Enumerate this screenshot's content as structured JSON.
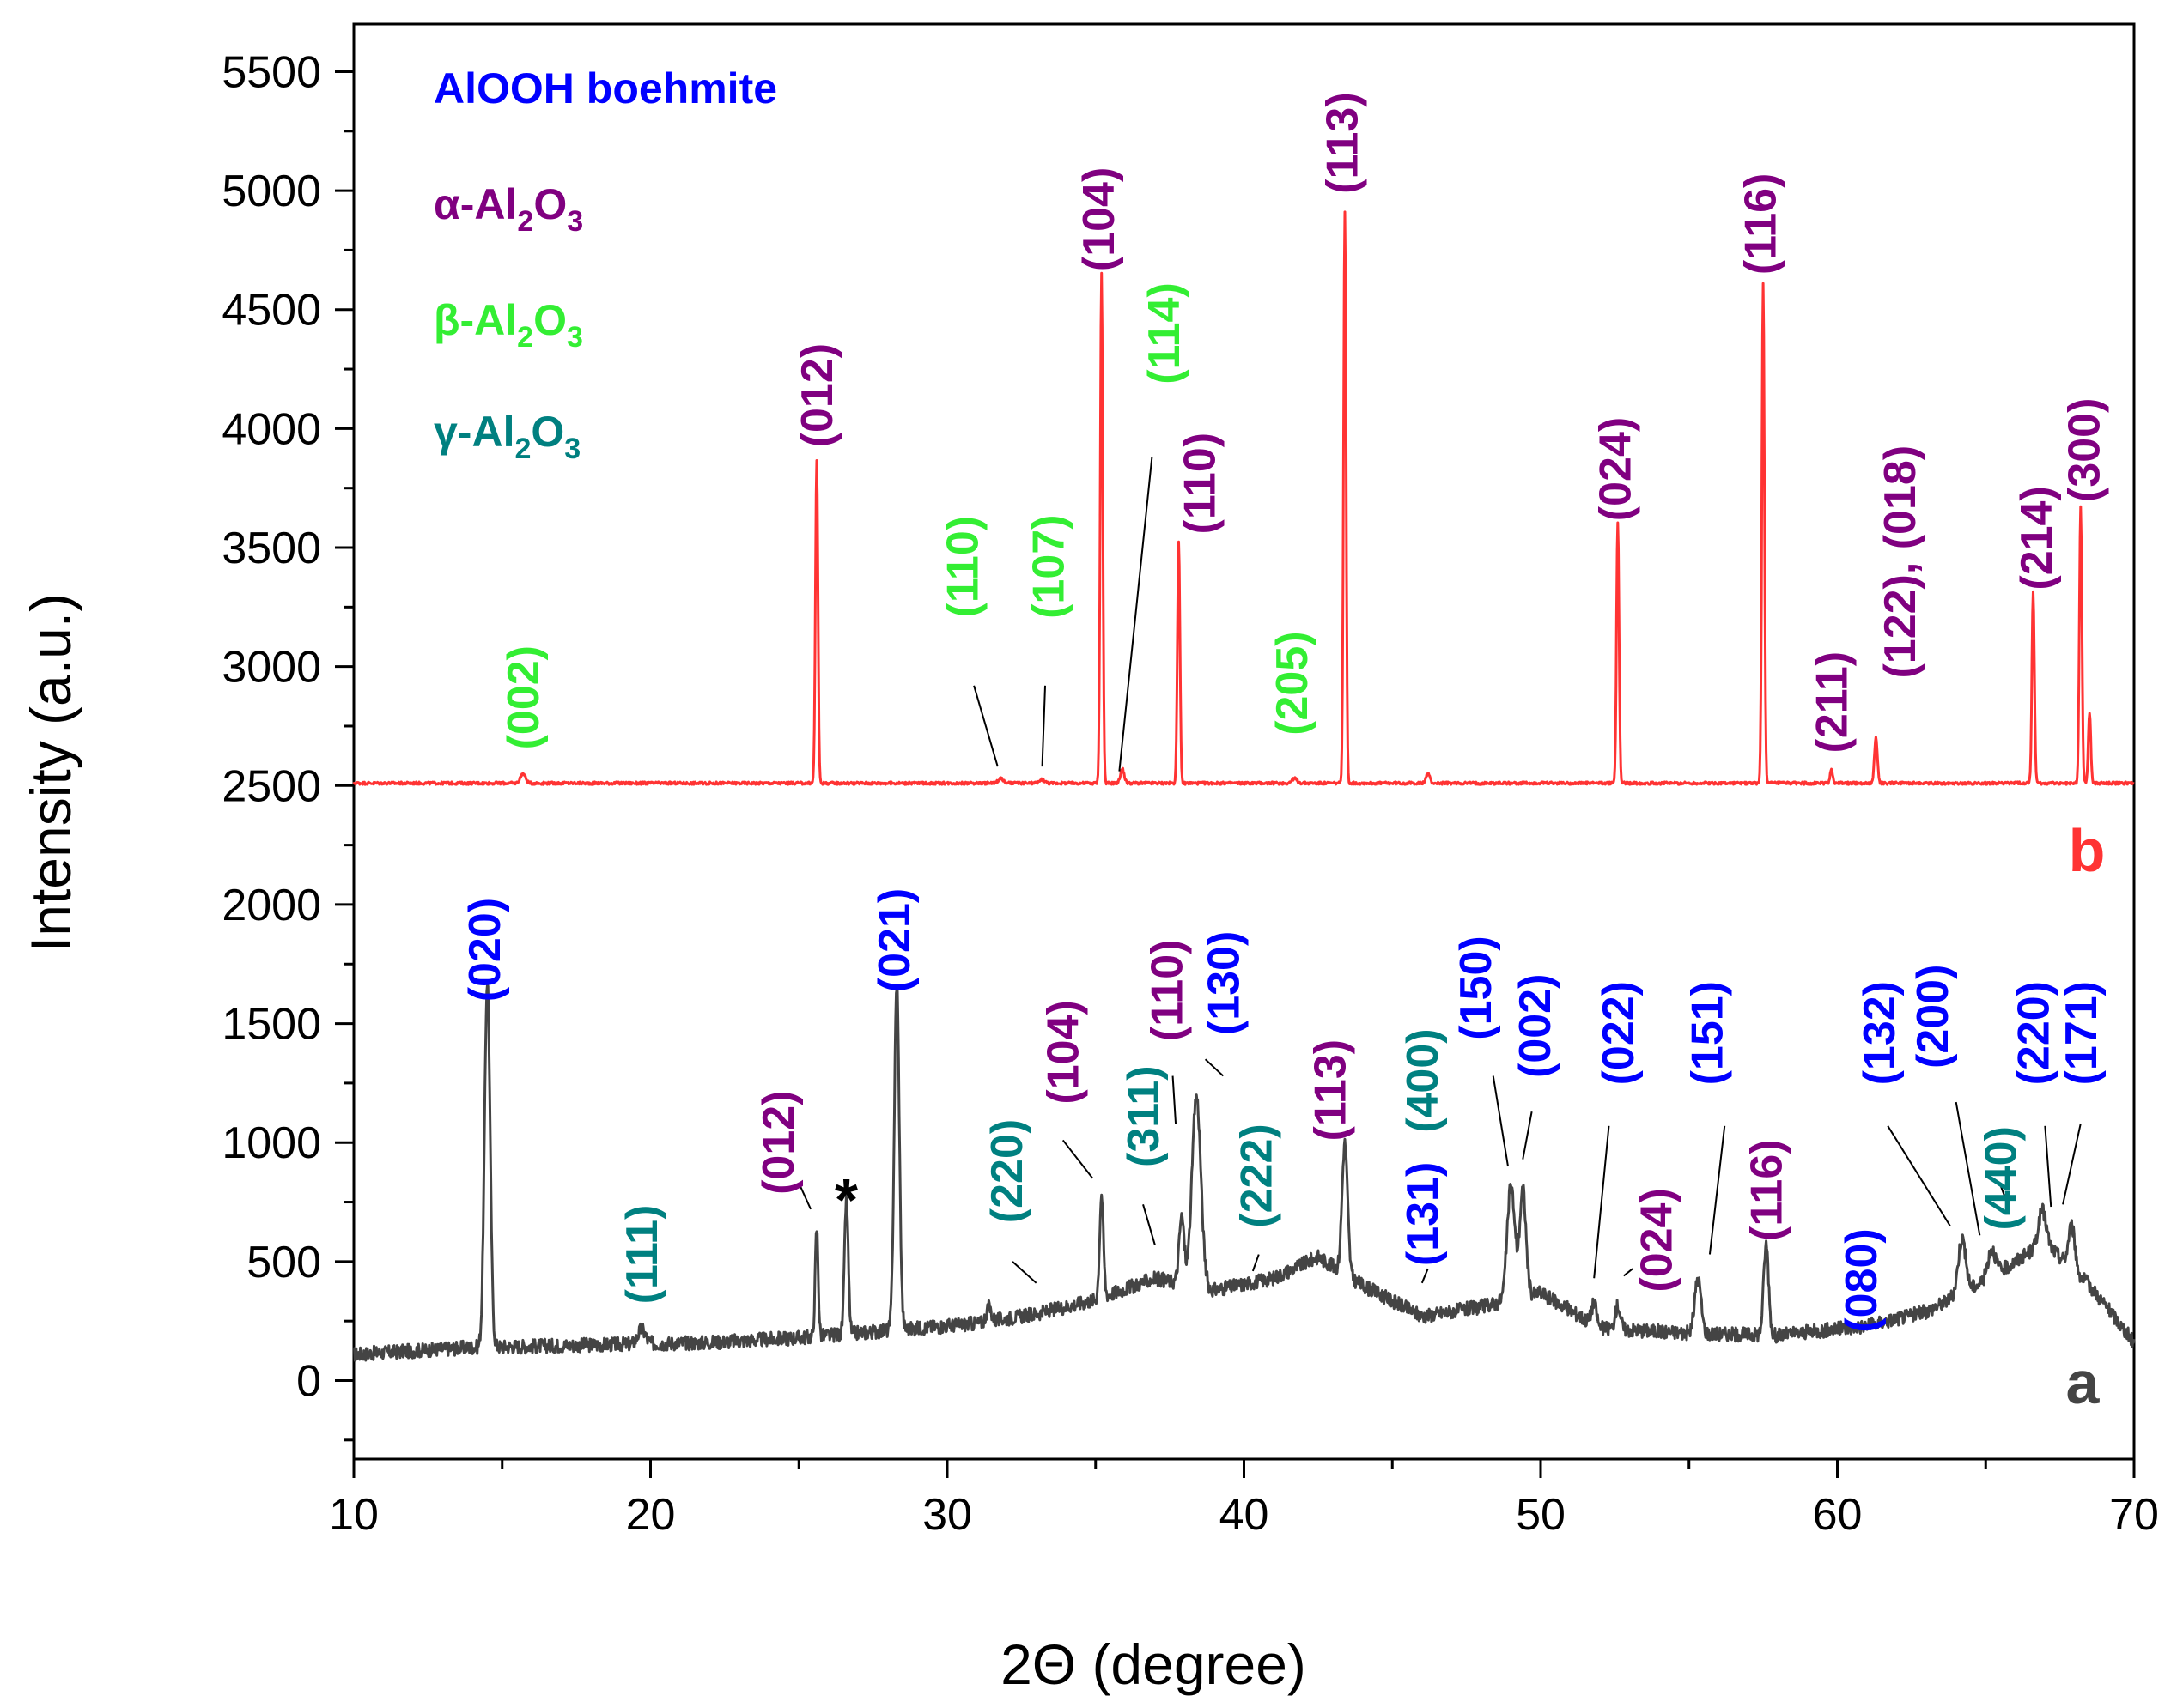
{
  "colors": {
    "boehmite": "#0000ff",
    "alpha": "#800080",
    "beta": "#33ee33",
    "gamma": "#008080",
    "series_a": "#444444",
    "series_b": "#ff3333",
    "star": "#000000"
  },
  "chart_data": {
    "type": "line",
    "title": "",
    "xlabel": "2Θ (degree)",
    "ylabel": "Intensity (a.u.)",
    "xlim": [
      10,
      70
    ],
    "ylim": [
      -330,
      5700
    ],
    "x_ticks": [
      10,
      20,
      30,
      40,
      50,
      60,
      70
    ],
    "y_ticks": [
      0,
      500,
      1000,
      1500,
      2000,
      2500,
      3000,
      3500,
      4000,
      4500,
      5000,
      5500
    ],
    "legend": [
      {
        "label": "AlOOH boehmite",
        "phase": "boehmite"
      },
      {
        "label": "α-Al",
        "sub1": "2",
        "mid": "O",
        "sub2": "3",
        "phase": "alpha"
      },
      {
        "label": "β-Al",
        "sub1": "2",
        "mid": "O",
        "sub2": "3",
        "phase": "beta"
      },
      {
        "label": "γ-Al",
        "sub1": "2",
        "mid": "O",
        "sub2": "3",
        "phase": "gamma"
      }
    ],
    "series": [
      {
        "name": "a",
        "color_key": "series_a",
        "baseline_points": [
          [
            10,
            110
          ],
          [
            14,
            140
          ],
          [
            18,
            150
          ],
          [
            22,
            160
          ],
          [
            25,
            180
          ],
          [
            28,
            210
          ],
          [
            31,
            240
          ],
          [
            33,
            280
          ],
          [
            35,
            340
          ],
          [
            37,
            430
          ],
          [
            39,
            380
          ],
          [
            41,
            430
          ],
          [
            42.5,
            520
          ],
          [
            44,
            400
          ],
          [
            46,
            270
          ],
          [
            48,
            310
          ],
          [
            50,
            370
          ],
          [
            52,
            220
          ],
          [
            55,
            200
          ],
          [
            58,
            190
          ],
          [
            61,
            230
          ],
          [
            63,
            290
          ],
          [
            65,
            420
          ],
          [
            67,
            580
          ],
          [
            68.5,
            400
          ],
          [
            70,
            160
          ]
        ],
        "peaks": [
          [
            14.5,
            1540,
            0.22
          ],
          [
            19.7,
            60,
            0.3
          ],
          [
            25.6,
            450,
            0.12
          ],
          [
            26.6,
            560,
            0.15
          ],
          [
            28.3,
            1450,
            0.2
          ],
          [
            31.4,
            60,
            0.2
          ],
          [
            35.2,
            430,
            0.15
          ],
          [
            37.9,
            280,
            0.2
          ],
          [
            38.4,
            800,
            0.35
          ],
          [
            43.4,
            550,
            0.22
          ],
          [
            49.0,
            480,
            0.3
          ],
          [
            49.4,
            450,
            0.25
          ],
          [
            51.8,
            90,
            0.2
          ],
          [
            52.6,
            100,
            0.2
          ],
          [
            55.3,
            230,
            0.25
          ],
          [
            57.6,
            380,
            0.2
          ],
          [
            64.2,
            230,
            0.3
          ],
          [
            65.2,
            120,
            0.3
          ],
          [
            66.9,
            140,
            0.3
          ],
          [
            67.9,
            180,
            0.25
          ]
        ],
        "noise": 30,
        "tag": "a"
      },
      {
        "name": "b",
        "color_key": "series_b",
        "baseline_points": [
          [
            10,
            2510
          ],
          [
            70,
            2510
          ]
        ],
        "peaks": [
          [
            15.7,
            40,
            0.2
          ],
          [
            25.6,
            1360,
            0.1
          ],
          [
            31.8,
            20,
            0.2
          ],
          [
            33.2,
            15,
            0.2
          ],
          [
            35.2,
            2140,
            0.1
          ],
          [
            35.9,
            60,
            0.15
          ],
          [
            37.8,
            1020,
            0.1
          ],
          [
            41.7,
            20,
            0.2
          ],
          [
            43.4,
            2400,
            0.1
          ],
          [
            46.2,
            40,
            0.15
          ],
          [
            52.6,
            1100,
            0.1
          ],
          [
            57.5,
            2100,
            0.1
          ],
          [
            59.8,
            60,
            0.1
          ],
          [
            61.3,
            190,
            0.12
          ],
          [
            66.6,
            800,
            0.1
          ],
          [
            68.2,
            1160,
            0.1
          ],
          [
            68.5,
            300,
            0.1
          ]
        ],
        "noise": 6,
        "tag": "b"
      }
    ],
    "annotations": [
      {
        "text": "(002)",
        "phase": "beta",
        "x": 15.7,
        "y": 2870
      },
      {
        "text": "(012)",
        "phase": "alpha",
        "x": 25.6,
        "y": 4140
      },
      {
        "text": "(110)",
        "phase": "beta",
        "x": 30.5,
        "y": 3420
      },
      {
        "text": "(107)",
        "phase": "beta",
        "x": 33.4,
        "y": 3420
      },
      {
        "text": "(104)",
        "phase": "alpha",
        "x": 35.1,
        "y": 4880
      },
      {
        "text": "(114)",
        "phase": "beta",
        "x": 37.3,
        "y": 4400
      },
      {
        "text": "(110)",
        "phase": "alpha",
        "x": 38.5,
        "y": 3770
      },
      {
        "text": "(205)",
        "phase": "beta",
        "x": 41.6,
        "y": 2930
      },
      {
        "text": "(113)",
        "phase": "alpha",
        "x": 43.3,
        "y": 5200
      },
      {
        "text": "(024)",
        "phase": "alpha",
        "x": 52.5,
        "y": 3830
      },
      {
        "text": "(116)",
        "phase": "alpha",
        "x": 57.4,
        "y": 4860
      },
      {
        "text": "(211)",
        "phase": "alpha",
        "x": 59.8,
        "y": 2850
      },
      {
        "text": "(122), (018)",
        "phase": "alpha",
        "x": 62.1,
        "y": 3440
      },
      {
        "text": "(214)",
        "phase": "alpha",
        "x": 66.7,
        "y": 3540
      },
      {
        "text": "(300)",
        "phase": "alpha",
        "x": 68.3,
        "y": 3910
      },
      {
        "text": "(020)",
        "phase": "boehmite",
        "x": 14.4,
        "y": 1810
      },
      {
        "text": "(111)",
        "phase": "gamma",
        "x": 19.7,
        "y": 530
      },
      {
        "text": "(012)",
        "phase": "alpha",
        "x": 24.3,
        "y": 1000
      },
      {
        "text": "(021)",
        "phase": "boehmite",
        "x": 28.2,
        "y": 1850
      },
      {
        "text": "(220)",
        "phase": "gamma",
        "x": 32.0,
        "y": 880
      },
      {
        "text": "(104)",
        "phase": "alpha",
        "x": 33.9,
        "y": 1380
      },
      {
        "text": "(311)",
        "phase": "gamma",
        "x": 36.6,
        "y": 1110
      },
      {
        "text": "(110)",
        "phase": "alpha",
        "x": 37.4,
        "y": 1640
      },
      {
        "text": "(130)",
        "phase": "boehmite",
        "x": 39.3,
        "y": 1670
      },
      {
        "text": "(222)",
        "phase": "gamma",
        "x": 40.4,
        "y": 860
      },
      {
        "text": "(113)",
        "phase": "alpha",
        "x": 42.9,
        "y": 1220
      },
      {
        "text": "(131)",
        "phase": "boehmite",
        "x": 46.0,
        "y": 700
      },
      {
        "text": "(400)",
        "phase": "gamma",
        "x": 46.0,
        "y": 1260
      },
      {
        "text": "(150)",
        "phase": "boehmite",
        "x": 47.8,
        "y": 1650
      },
      {
        "text": "(002)",
        "phase": "boehmite",
        "x": 49.8,
        "y": 1490
      },
      {
        "text": "(022)",
        "phase": "boehmite",
        "x": 52.6,
        "y": 1460
      },
      {
        "text": "(024)",
        "phase": "alpha",
        "x": 53.9,
        "y": 590
      },
      {
        "text": "(151)",
        "phase": "boehmite",
        "x": 55.6,
        "y": 1460
      },
      {
        "text": "(116)",
        "phase": "alpha",
        "x": 57.6,
        "y": 800
      },
      {
        "text": "(080)",
        "phase": "boehmite",
        "x": 60.8,
        "y": 420
      },
      {
        "text": "(132)",
        "phase": "boehmite",
        "x": 61.4,
        "y": 1460
      },
      {
        "text": "(200)",
        "phase": "boehmite",
        "x": 63.2,
        "y": 1530
      },
      {
        "text": "(440)",
        "phase": "gamma",
        "x": 65.5,
        "y": 850
      },
      {
        "text": "(220)",
        "phase": "boehmite",
        "x": 66.6,
        "y": 1460
      },
      {
        "text": "(171)",
        "phase": "boehmite",
        "x": 68.2,
        "y": 1460
      }
    ],
    "leaders": [
      {
        "phase": "beta",
        "from": [
          31.7,
          2580
        ],
        "to": [
          30.9,
          2920
        ]
      },
      {
        "phase": "beta",
        "from": [
          33.2,
          2580
        ],
        "to": [
          33.3,
          2920
        ]
      },
      {
        "phase": "beta",
        "from": [
          35.8,
          2560
        ],
        "to": [
          36.9,
          3880
        ]
      },
      {
        "phase": "alpha",
        "from": [
          25.4,
          720
        ],
        "to": [
          25.0,
          830
        ]
      },
      {
        "phase": "gamma",
        "from": [
          33.0,
          410
        ],
        "to": [
          32.2,
          500
        ]
      },
      {
        "phase": "alpha",
        "from": [
          34.9,
          850
        ],
        "to": [
          33.9,
          1010
        ]
      },
      {
        "phase": "gamma",
        "from": [
          37.0,
          570
        ],
        "to": [
          36.6,
          740
        ]
      },
      {
        "phase": "alpha",
        "from": [
          37.7,
          1080
        ],
        "to": [
          37.6,
          1280
        ]
      },
      {
        "phase": "boehmite",
        "from": [
          38.7,
          1350
        ],
        "to": [
          39.3,
          1280
        ]
      },
      {
        "phase": "gamma",
        "from": [
          40.3,
          460
        ],
        "to": [
          40.5,
          530
        ]
      },
      {
        "phase": "boehmite",
        "from": [
          46.0,
          410
        ],
        "to": [
          46.2,
          470
        ]
      },
      {
        "phase": "boehmite",
        "from": [
          48.9,
          900
        ],
        "to": [
          48.4,
          1280
        ]
      },
      {
        "phase": "boehmite",
        "from": [
          49.4,
          930
        ],
        "to": [
          49.7,
          1130
        ]
      },
      {
        "phase": "boehmite",
        "from": [
          51.8,
          430
        ],
        "to": [
          52.3,
          1070
        ]
      },
      {
        "phase": "alpha",
        "from": [
          52.8,
          440
        ],
        "to": [
          53.1,
          470
        ]
      },
      {
        "phase": "boehmite",
        "from": [
          55.7,
          530
        ],
        "to": [
          56.2,
          1070
        ]
      },
      {
        "phase": "boehmite",
        "from": [
          63.8,
          650
        ],
        "to": [
          61.7,
          1070
        ]
      },
      {
        "phase": "boehmite",
        "from": [
          64.8,
          610
        ],
        "to": [
          64.0,
          1170
        ]
      },
      {
        "phase": "gamma",
        "from": [
          65.8,
          720
        ],
        "to": [
          65.5,
          820
        ]
      },
      {
        "phase": "boehmite",
        "from": [
          67.2,
          730
        ],
        "to": [
          67.0,
          1070
        ]
      },
      {
        "phase": "boehmite",
        "from": [
          67.6,
          740
        ],
        "to": [
          68.2,
          1080
        ]
      }
    ],
    "markers": [
      {
        "text": "*",
        "phase": "star",
        "x": 26.6,
        "y": 780
      }
    ]
  }
}
